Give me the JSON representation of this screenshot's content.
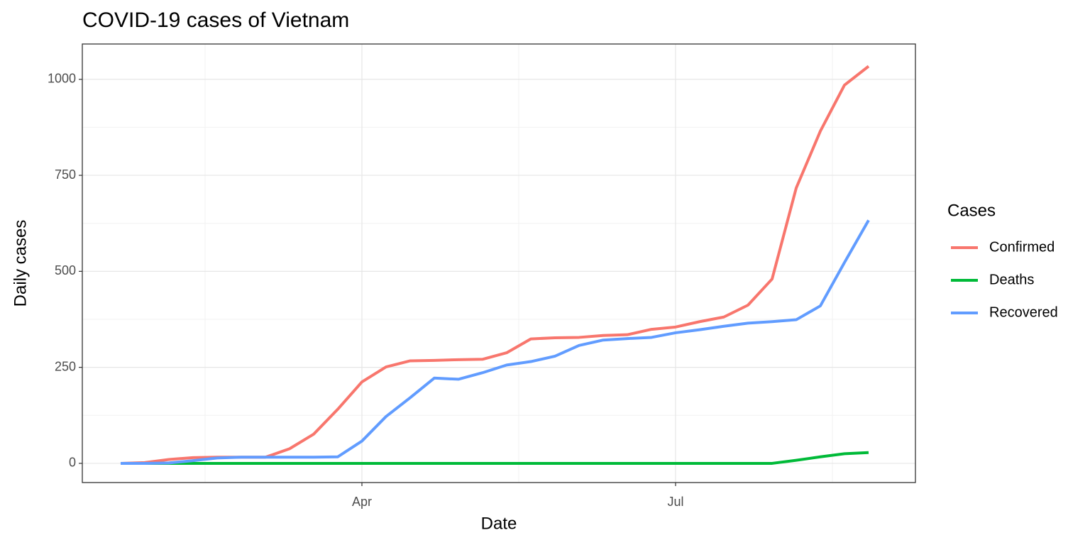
{
  "chart_data": {
    "type": "line",
    "title": "COVID-19 cases of Vietnam",
    "x_label": "Date",
    "y_label": "Daily cases",
    "legend_title": "Cases",
    "legend": "right",
    "grid": true,
    "categories": [
      null,
      null,
      null,
      null,
      null,
      null,
      null,
      null,
      null,
      null,
      "Apr",
      null,
      null,
      null,
      null,
      null,
      null,
      null,
      null,
      null,
      null,
      null,
      null,
      "Jul",
      null,
      null,
      null,
      null,
      null,
      null,
      null,
      null
    ],
    "series": [
      {
        "name": "Confirmed",
        "color": "#F8766D",
        "values": [
          0,
          2,
          10,
          15,
          16,
          16,
          16,
          38,
          76,
          141,
          212,
          251,
          267,
          268,
          270,
          271,
          288,
          324,
          327,
          328,
          333,
          335,
          349,
          355,
          369,
          381,
          412,
          480,
          717,
          865,
          985,
          1034
        ]
      },
      {
        "name": "Deaths",
        "color": "#00BA38",
        "values": [
          0,
          0,
          0,
          0,
          0,
          0,
          0,
          0,
          0,
          0,
          0,
          0,
          0,
          0,
          0,
          0,
          0,
          0,
          0,
          0,
          0,
          0,
          0,
          0,
          0,
          0,
          0,
          0,
          8,
          17,
          25,
          28
        ]
      },
      {
        "name": "Recovered",
        "color": "#619CFF",
        "values": [
          0,
          0,
          1,
          7,
          14,
          16,
          16,
          16,
          16,
          17,
          58,
          122,
          171,
          222,
          219,
          236,
          256,
          265,
          279,
          307,
          321,
          325,
          328,
          340,
          348,
          357,
          365,
          369,
          374,
          410,
          523,
          633
        ]
      }
    ],
    "ylim": [
      -50,
      1092
    ],
    "yticks": [
      0,
      250,
      500,
      750,
      1000
    ]
  }
}
